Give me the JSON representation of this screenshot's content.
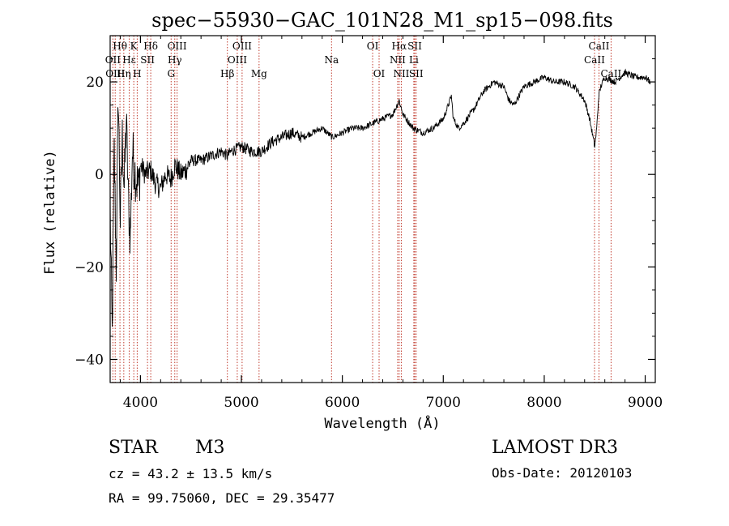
{
  "chart_data": {
    "type": "line",
    "title": "spec−55930−GAC_101N28_M1_sp15−098.fits",
    "xlabel": "Wavelength (Å)",
    "ylabel": "Flux (relative)",
    "xlim": [
      3700,
      9100
    ],
    "ylim": [
      -45,
      30
    ],
    "x_ticks": [
      4000,
      5000,
      6000,
      7000,
      8000,
      9000
    ],
    "x_tick_labels": [
      "4000",
      "5000",
      "6000",
      "7000",
      "8000",
      "9000"
    ],
    "y_ticks": [
      -40,
      -20,
      0,
      20
    ],
    "y_tick_labels": [
      "−40",
      "−20",
      "0",
      "20"
    ],
    "series": [
      {
        "name": "spectrum",
        "x": [
          3700,
          3720,
          3740,
          3760,
          3780,
          3800,
          3820,
          3840,
          3860,
          3880,
          3900,
          3920,
          3950,
          3980,
          4000,
          4050,
          4100,
          4150,
          4200,
          4250,
          4300,
          4340,
          4400,
          4450,
          4500,
          4600,
          4700,
          4800,
          4861,
          4900,
          5000,
          5100,
          5200,
          5300,
          5400,
          5500,
          5600,
          5700,
          5800,
          5900,
          6000,
          6100,
          6200,
          6300,
          6400,
          6500,
          6563,
          6600,
          6700,
          6800,
          6900,
          7000,
          7050,
          7080,
          7100,
          7150,
          7200,
          7300,
          7400,
          7500,
          7600,
          7650,
          7700,
          7800,
          7900,
          8000,
          8100,
          8200,
          8300,
          8400,
          8450,
          8500,
          8520,
          8540,
          8560,
          8600,
          8700,
          8800,
          8900,
          9000,
          9050
        ],
        "y": [
          -8,
          -35,
          5,
          -20,
          18,
          -10,
          8,
          -3,
          12,
          -5,
          -14,
          5,
          0,
          -3,
          2,
          0,
          1,
          -2,
          -3,
          0,
          -1,
          2,
          0,
          1,
          3,
          3,
          4,
          5,
          4,
          5,
          6,
          5,
          5,
          7,
          8,
          9,
          8,
          9,
          10,
          8,
          9,
          10,
          10,
          11,
          12,
          13,
          16,
          13,
          10,
          9,
          10,
          12,
          15,
          17,
          12,
          10,
          11,
          14,
          18,
          20,
          19,
          16,
          15,
          19,
          20,
          21,
          20,
          20,
          19,
          16,
          12,
          6,
          10,
          17,
          19,
          21,
          20,
          22,
          21,
          21,
          20
        ]
      }
    ],
    "spectral_lines": [
      {
        "label": "Hθ",
        "wavelength": 3797,
        "row": 1
      },
      {
        "label": "OII",
        "wavelength": 3727,
        "row": 2
      },
      {
        "label": "OIII",
        "wavelength": 3750,
        "row": 3
      },
      {
        "label": "Hη",
        "wavelength": 3835,
        "row": 3
      },
      {
        "label": "Hε",
        "wavelength": 3889,
        "row": 2
      },
      {
        "label": "K",
        "wavelength": 3934,
        "row": 1
      },
      {
        "label": "H",
        "wavelength": 3968,
        "row": 3
      },
      {
        "label": "SII",
        "wavelength": 4070,
        "row": 2
      },
      {
        "label": "Hδ",
        "wavelength": 4102,
        "row": 1
      },
      {
        "label": "OIII",
        "wavelength": 4363,
        "row": 1
      },
      {
        "label": "Hγ",
        "wavelength": 4340,
        "row": 2
      },
      {
        "label": "G",
        "wavelength": 4304,
        "row": 3
      },
      {
        "label": "Hβ",
        "wavelength": 4861,
        "row": 3
      },
      {
        "label": "OIII",
        "wavelength": 5007,
        "row": 1
      },
      {
        "label": "OIII",
        "wavelength": 4959,
        "row": 2
      },
      {
        "label": "Mg",
        "wavelength": 5175,
        "row": 3
      },
      {
        "label": "Na",
        "wavelength": 5893,
        "row": 2
      },
      {
        "label": "OI",
        "wavelength": 6300,
        "row": 1
      },
      {
        "label": "OI",
        "wavelength": 6364,
        "row": 3
      },
      {
        "label": "Hα",
        "wavelength": 6563,
        "row": 1
      },
      {
        "label": "NII",
        "wavelength": 6548,
        "row": 2
      },
      {
        "label": "NII",
        "wavelength": 6584,
        "row": 3
      },
      {
        "label": "SII",
        "wavelength": 6717,
        "row": 1
      },
      {
        "label": "Li",
        "wavelength": 6708,
        "row": 2
      },
      {
        "label": "SII",
        "wavelength": 6731,
        "row": 3
      },
      {
        "label": "CaII",
        "wavelength": 8542,
        "row": 1
      },
      {
        "label": "CaII",
        "wavelength": 8498,
        "row": 2
      },
      {
        "label": "CaII",
        "wavelength": 8662,
        "row": 3
      }
    ]
  },
  "footer": {
    "object_class": "STAR",
    "subclass": "M3",
    "survey": "LAMOST DR3",
    "redshift": "cz = 43.2 ± 13.5 km/s",
    "obs_date": "Obs-Date: 20120103",
    "coords": "RA =  99.75060, DEC =  29.35477"
  },
  "colors": {
    "line_marker": "#c0392b",
    "spectrum": "#000000",
    "background": "#ffffff"
  }
}
